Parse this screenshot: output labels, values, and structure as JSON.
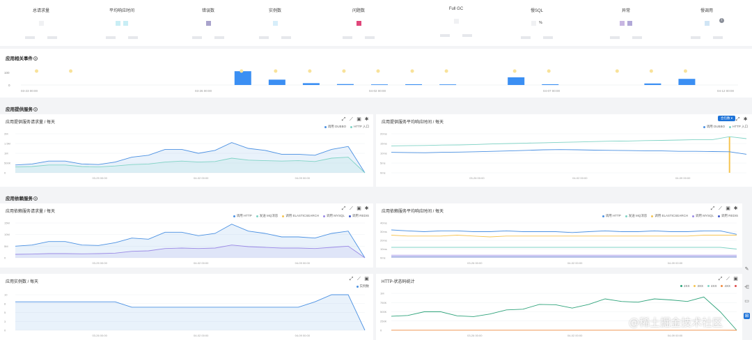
{
  "kpis": [
    {
      "label": "总请求量",
      "colors": []
    },
    {
      "label": "平均响应时间",
      "colors": [
        "#c9eef5",
        "#c9eef5"
      ]
    },
    {
      "label": "错误数",
      "colors": [
        "#a9a3cc"
      ]
    },
    {
      "label": "实例数",
      "colors": [
        "#d7eefa"
      ]
    },
    {
      "label": "问题数",
      "colors": [
        "#e0467a"
      ]
    },
    {
      "label": "Full GC",
      "colors": []
    },
    {
      "label": "慢SQL",
      "colors": []
    },
    {
      "label": "异常",
      "colors": [
        "#c8b6e2",
        "#b1a8d8"
      ]
    },
    {
      "label": "慢调用",
      "colors": [
        "#d0e5f5"
      ]
    }
  ],
  "kpi_extra": "%",
  "events": {
    "title": "应用相关事件",
    "y_tick": "100",
    "y_zero": "0",
    "x_labels": [
      "03-23 00:00",
      "03-26 00:00",
      "04-02 00:00",
      "04-07 00:00",
      "04-12 00:00"
    ],
    "bars": [
      0,
      0,
      0,
      0,
      0,
      0,
      90,
      35,
      12,
      6,
      4,
      5,
      4,
      0,
      50,
      5,
      0,
      0,
      10,
      40,
      0
    ],
    "markers": [
      1,
      1,
      0,
      0,
      0,
      0,
      1,
      1,
      1,
      1,
      1,
      1,
      1,
      0,
      1,
      1,
      0,
      1,
      1,
      1,
      0
    ]
  },
  "section_provided": "应用提供服务",
  "section_dependent": "应用依赖服务",
  "charts": {
    "provided_requests": {
      "title": "应用提供服务请求量 / 每天",
      "legend": [
        {
          "name": "调用 DUBBO",
          "color": "#4a90e2"
        },
        {
          "name": "HTTP 入口",
          "color": "#7fd3c5"
        }
      ],
      "y_ticks": [
        "2M",
        "1.5M",
        "1M",
        "500K",
        "0"
      ],
      "x_labels": [
        "03-25 00:00",
        "04-02 00:00",
        "04-09 00:00"
      ],
      "chart_data": {
        "type": "area",
        "ylim": [
          0,
          2000000
        ],
        "series": [
          {
            "name": "调用 DUBBO",
            "color": "#4a90e2",
            "values": [
              400000,
              450000,
              600000,
              600000,
              450000,
              420000,
              550000,
              800000,
              900000,
              1200000,
              1200000,
              1000000,
              1150000,
              1550000,
              1250000,
              1150000,
              950000,
              950000,
              900000,
              1200000,
              1350000,
              0
            ]
          },
          {
            "name": "HTTP 入口",
            "color": "#7fd3c5",
            "values": [
              300000,
              320000,
              400000,
              400000,
              320000,
              300000,
              350000,
              420000,
              450000,
              550000,
              600000,
              550000,
              580000,
              750000,
              650000,
              620000,
              600000,
              620000,
              580000,
              750000,
              800000,
              0
            ]
          }
        ]
      }
    },
    "provided_latency": {
      "title": "应用提供服务平均响应时间 / 每天",
      "merge_label": "合包数",
      "legend": [
        {
          "name": "调用 DUBBO",
          "color": "#4a90e2"
        },
        {
          "name": "HTTP 入口",
          "color": "#7fd3c5"
        }
      ],
      "y_ticks": [
        "20ms",
        "15ms",
        "10ms",
        "5ms",
        "0ms"
      ],
      "x_labels": [
        "03-26 00:00",
        "04-02 00:00",
        "04-09 00:00"
      ],
      "chart_data": {
        "type": "line",
        "ylim": [
          0,
          20
        ],
        "series": [
          {
            "name": "调用 DUBBO",
            "color": "#4a90e2",
            "values": [
              10.5,
              10.4,
              10.3,
              10.5,
              10.6,
              10.8,
              11.0,
              11.2,
              11.5,
              11.8,
              11.9,
              11.8,
              11.6,
              11.5,
              11.4,
              11.3,
              11.2,
              11.0,
              11.0,
              10.9,
              10.8,
              9.5
            ]
          },
          {
            "name": "HTTP 入口",
            "color": "#7fd3c5",
            "values": [
              13.8,
              13.9,
              14.0,
              14.2,
              14.3,
              14.5,
              14.8,
              15.0,
              15.2,
              15.4,
              15.6,
              15.8,
              16.0,
              16.2,
              16.3,
              16.5,
              16.6,
              16.8,
              17.0,
              17.0,
              18.5,
              17.5
            ]
          }
        ],
        "spike_index": 20
      }
    },
    "dependent_requests": {
      "title": "应用依赖服务请求量 / 每天",
      "legend": [
        {
          "name": "调用 HTTP",
          "color": "#4a90e2"
        },
        {
          "name": "发送 MQ消息",
          "color": "#7fd3c5"
        },
        {
          "name": "调用 ELASTICSEARCH",
          "color": "#f5c451"
        },
        {
          "name": "调用 MYSQL",
          "color": "#9b8ae6"
        },
        {
          "name": "调用 REDIS",
          "color": "#3c54c8"
        }
      ],
      "y_ticks": [
        "15M",
        "10M",
        "5M",
        "0"
      ],
      "x_labels": [
        "03-25 00:00",
        "04-02 00:00",
        "04-09 00:00"
      ],
      "chart_data": {
        "type": "area",
        "ylim": [
          0,
          15000000
        ],
        "series": [
          {
            "name": "调用 HTTP",
            "color": "#4a90e2",
            "values": [
              5000000,
              5500000,
              7000000,
              7000000,
              5500000,
              5300000,
              6500000,
              8500000,
              8000000,
              11000000,
              11000000,
              9500000,
              10500000,
              14500000,
              11500000,
              10500000,
              9000000,
              9000000,
              8500000,
              10500000,
              11500000,
              0
            ]
          },
          {
            "name": "调用 MYSQL",
            "color": "#9b8ae6",
            "values": [
              1500000,
              1600000,
              1800000,
              1800000,
              1700000,
              1800000,
              2000000,
              2800000,
              3000000,
              4000000,
              4200000,
              4000000,
              4200000,
              5500000,
              4800000,
              4500000,
              4200000,
              4200000,
              4000000,
              4500000,
              5000000,
              0
            ]
          }
        ]
      }
    },
    "dependent_latency": {
      "title": "应用依赖服务平均响应时间 / 每天",
      "legend": [
        {
          "name": "调用 HTTP",
          "color": "#4a90e2"
        },
        {
          "name": "发送 MQ消息",
          "color": "#7fd3c5"
        },
        {
          "name": "调用 ELASTICSEARCH",
          "color": "#f5c451"
        },
        {
          "name": "调用 MYSQL",
          "color": "#9b8ae6"
        },
        {
          "name": "调用 REDIS",
          "color": "#3c54c8"
        }
      ],
      "y_ticks": [
        "40ms",
        "30ms",
        "20ms",
        "10ms",
        "0ms"
      ],
      "x_labels": [
        "03-26 00:00",
        "04-02 00:00",
        "04-09 00:00"
      ],
      "chart_data": {
        "type": "line",
        "ylim": [
          0,
          40
        ],
        "series": [
          {
            "name": "调用 HTTP",
            "color": "#4a90e2",
            "values": [
              32,
              31,
              30,
              31,
              31,
              30,
              30,
              31,
              30,
              30,
              30,
              29,
              30,
              31,
              30,
              30,
              31,
              30,
              30,
              31,
              31,
              27
            ]
          },
          {
            "name": "调用 ELASTICSEARCH",
            "color": "#f5c451",
            "values": [
              26,
              25,
              25,
              25,
              26,
              25,
              24,
              25,
              25,
              25,
              25,
              25,
              25,
              25,
              25,
              25,
              25,
              25,
              25,
              26,
              26,
              26
            ]
          },
          {
            "name": "发送 MQ消息",
            "color": "#7fd3c5",
            "values": [
              12,
              12,
              12,
              12,
              12,
              12,
              12,
              12,
              12,
              12,
              12,
              12,
              12,
              12,
              12,
              12,
              12,
              12,
              12,
              12,
              12,
              10
            ]
          },
          {
            "name": "调用 MYSQL",
            "color": "#9b8ae6",
            "values": [
              3,
              3,
              3,
              3,
              3,
              3,
              3,
              3,
              3,
              3,
              3,
              3,
              3,
              3,
              3,
              3,
              3,
              3,
              3,
              3,
              3,
              3
            ]
          },
          {
            "name": "调用 REDIS",
            "color": "#3c54c8",
            "values": [
              1,
              1,
              1,
              1,
              1,
              1,
              1,
              1,
              1,
              1,
              1,
              1,
              1,
              1,
              1,
              1,
              1,
              1,
              1,
              1,
              1,
              1
            ]
          }
        ]
      }
    },
    "instances": {
      "title": "应用实例数 / 每天",
      "legend": [
        {
          "name": "实例数",
          "color": "#4a90e2"
        }
      ],
      "y_ticks": [
        "10",
        "8",
        "5",
        "3",
        "0"
      ],
      "x_labels": [
        "03-26 00:00",
        "04-02 00:00",
        "04-09 00:00"
      ],
      "chart_data": {
        "type": "area",
        "ylim": [
          0,
          10
        ],
        "series": [
          {
            "name": "实例数",
            "color": "#4a90e2",
            "values": [
              8,
              8,
              8,
              8,
              8,
              8,
              8,
              6.5,
              6.5,
              6.5,
              6.5,
              6.5,
              6.5,
              6.5,
              6.5,
              6.5,
              6.5,
              6.5,
              8,
              10,
              10,
              0
            ]
          }
        ]
      }
    },
    "http_status": {
      "title": "HTTP-状态码统计",
      "legend": [
        {
          "name": "2XX",
          "color": "#2ea37a"
        },
        {
          "name": "3XX",
          "color": "#f5c451"
        },
        {
          "name": "4XX",
          "color": "#7fd3c5"
        },
        {
          "name": "4XX",
          "color": "#f08a3c"
        },
        {
          "name": "",
          "color": "#e04b4b"
        }
      ],
      "y_ticks": [
        "1M",
        "750K",
        "500K",
        "250K",
        "0"
      ],
      "x_labels": [
        "03-26 00:00",
        "04-02 00:00",
        "04-09 00:00"
      ],
      "chart_data": {
        "type": "line",
        "ylim": [
          0,
          1000000
        ],
        "series": [
          {
            "name": "2XX",
            "color": "#2ea37a",
            "values": [
              380000,
              400000,
              500000,
              500000,
              390000,
              370000,
              440000,
              550000,
              570000,
              700000,
              690000,
              600000,
              700000,
              850000,
              780000,
              760000,
              850000,
              820000,
              780000,
              900000,
              500000,
              0
            ]
          },
          {
            "name": "4XX",
            "color": "#f08a3c",
            "values": [
              2000,
              2000,
              2000,
              2000,
              2000,
              2000,
              2000,
              2000,
              2000,
              2000,
              2000,
              2000,
              2000,
              2000,
              2000,
              2000,
              2000,
              2000,
              2000,
              2000,
              2000,
              0
            ]
          }
        ]
      }
    }
  },
  "watermark": "@稀土掘金技术社区"
}
